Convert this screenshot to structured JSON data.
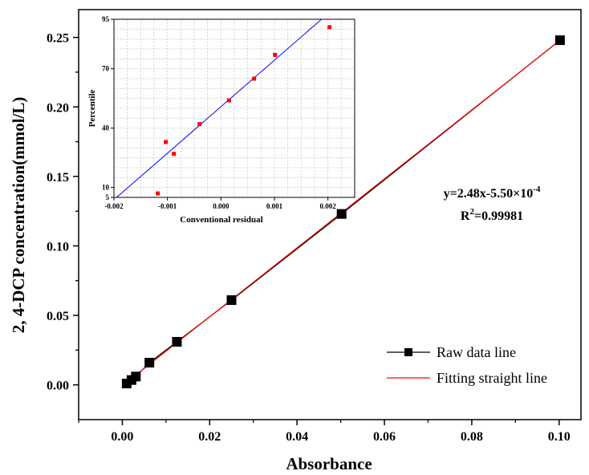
{
  "chart_data": [
    {
      "type": "line",
      "xlabel": "Absorbance",
      "ylabel": "2, 4-DCP concentration(mmol/L)",
      "xlim": [
        -0.01,
        0.105
      ],
      "ylim": [
        -0.025,
        0.27
      ],
      "xticks": [
        0.0,
        0.02,
        0.04,
        0.06,
        0.08,
        0.1
      ],
      "xtick_labels": [
        "0.00",
        "0.02",
        "0.04",
        "0.06",
        "0.08",
        "0.10"
      ],
      "yticks": [
        0.0,
        0.05,
        0.1,
        0.15,
        0.2,
        0.25
      ],
      "ytick_labels": [
        "0.00",
        "0.05",
        "0.10",
        "0.15",
        "0.20",
        "0.25"
      ],
      "series": [
        {
          "name": "Raw data line",
          "color": "#000000",
          "marker": "square",
          "x": [
            0.001,
            0.0021,
            0.0031,
            0.0062,
            0.0125,
            0.025,
            0.0502,
            0.1002
          ],
          "y": [
            0.001,
            0.0035,
            0.006,
            0.016,
            0.031,
            0.061,
            0.123,
            0.248
          ]
        },
        {
          "name": "Fitting straight line",
          "color": "#ff0000",
          "marker": "none",
          "x": [
            0.001,
            0.1002
          ],
          "y": [
            0.0019,
            0.2479
          ]
        }
      ],
      "annotation": {
        "equation_prefix": "y=2.48x-5.50×10",
        "equation_exp": "-4",
        "r2_prefix": "R",
        "r2_exp": "2",
        "r2_suffix": "=0.99981"
      },
      "legend_position": "bottom-right",
      "grid": false
    },
    {
      "type": "scatter",
      "xlabel": "Conventional residual",
      "ylabel": "Percentile",
      "xlim": [
        -0.002,
        0.0025
      ],
      "ylim": [
        5,
        95
      ],
      "xticks": [
        -0.002,
        -0.001,
        0.0,
        0.001,
        0.002
      ],
      "xtick_labels": [
        "-0.002",
        "-0.001",
        "0.000",
        "0.001",
        "0.002"
      ],
      "yticks": [
        5,
        10,
        40,
        70,
        95
      ],
      "ytick_labels": [
        "5",
        "10",
        "40",
        "70",
        "95"
      ],
      "series": [
        {
          "color": "#ff0000",
          "marker": "square",
          "x": [
            -0.00118,
            -0.00088,
            -0.00103,
            -0.0004,
            0.00015,
            0.00062,
            0.00101,
            0.00203
          ],
          "y": [
            7,
            27,
            33,
            42,
            54,
            65,
            77,
            91
          ]
        }
      ],
      "reference_line": {
        "color": "#0000ff",
        "x": [
          -0.00195,
          0.00188
        ],
        "y": [
          5,
          95
        ]
      },
      "grid": true,
      "legend_position": "none"
    }
  ]
}
